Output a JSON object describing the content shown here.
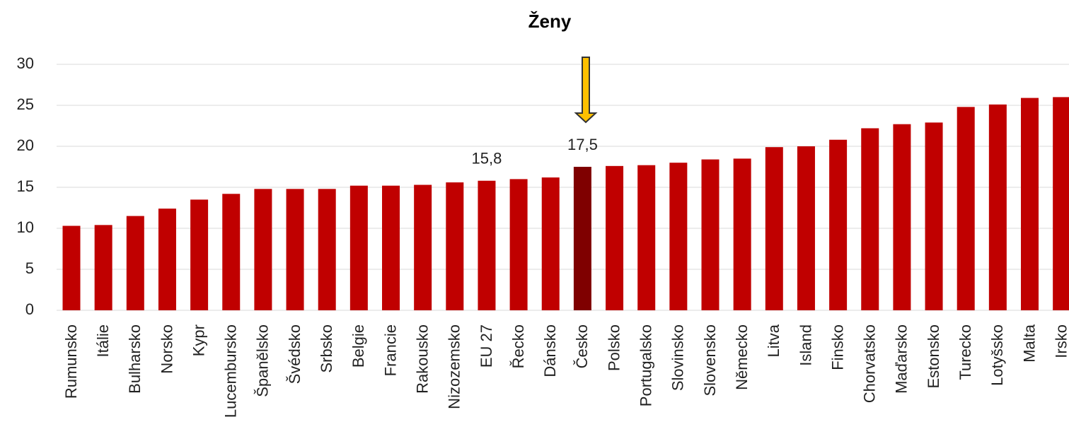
{
  "chart_data": {
    "type": "bar",
    "title": "Ženy",
    "categories": [
      "Rumunsko",
      "Itálie",
      "Bulharsko",
      "Norsko",
      "Kypr",
      "Lucembursko",
      "Španělsko",
      "Švédsko",
      "Srbsko",
      "Belgie",
      "Francie",
      "Rakousko",
      "Nizozemsko",
      "EU 27",
      "Řecko",
      "Dánsko",
      "Česko",
      "Polsko",
      "Portugalsko",
      "Slovinsko",
      "Slovensko",
      "Německo",
      "Litva",
      "Island",
      "Finsko",
      "Chorvatsko",
      "Maďarsko",
      "Estonsko",
      "Turecko",
      "Lotyšsko",
      "Malta",
      "Irsko"
    ],
    "values": [
      10.3,
      10.4,
      11.5,
      12.4,
      13.5,
      14.2,
      14.8,
      14.8,
      14.8,
      15.2,
      15.2,
      15.3,
      15.6,
      15.8,
      16.0,
      16.2,
      17.5,
      17.6,
      17.7,
      18.0,
      18.4,
      18.5,
      19.9,
      20.0,
      20.8,
      22.2,
      22.7,
      22.9,
      24.8,
      25.1,
      25.9,
      26.0
    ],
    "value_labels": [
      null,
      null,
      null,
      null,
      null,
      null,
      null,
      null,
      null,
      null,
      null,
      null,
      null,
      "15,8",
      null,
      null,
      "17,5",
      null,
      null,
      null,
      null,
      null,
      null,
      null,
      null,
      null,
      null,
      null,
      null,
      null,
      null,
      null
    ],
    "colors": [
      "#c00000",
      "#c00000",
      "#c00000",
      "#c00000",
      "#c00000",
      "#c00000",
      "#c00000",
      "#c00000",
      "#c00000",
      "#c00000",
      "#c00000",
      "#c00000",
      "#c00000",
      "#c00000",
      "#c00000",
      "#c00000",
      "#7f0000",
      "#c00000",
      "#c00000",
      "#c00000",
      "#c00000",
      "#c00000",
      "#c00000",
      "#c00000",
      "#c00000",
      "#c00000",
      "#c00000",
      "#c00000",
      "#c00000",
      "#c00000",
      "#c00000",
      "#c00000"
    ],
    "ylim": [
      0,
      30
    ],
    "yticks": [
      0,
      5,
      10,
      15,
      20,
      25,
      30
    ],
    "grid": true
  }
}
